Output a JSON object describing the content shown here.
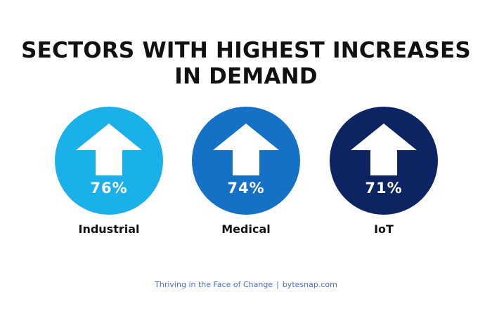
{
  "title": {
    "line1": "SECTORS WITH HIGHEST INCREASES",
    "line2": "IN DEMAND"
  },
  "sectors": [
    {
      "label": "Industrial",
      "value": "76%",
      "color": "#1ab0ea",
      "icon": "up-arrow-icon"
    },
    {
      "label": "Medical",
      "value": "74%",
      "color": "#1571c6",
      "icon": "up-arrow-icon"
    },
    {
      "label": "IoT",
      "value": "71%",
      "color": "#0c2461",
      "icon": "up-arrow-icon"
    }
  ],
  "footer": {
    "text": "Thriving in the Face of Change",
    "separator": "|",
    "site": "bytesnap.com"
  }
}
